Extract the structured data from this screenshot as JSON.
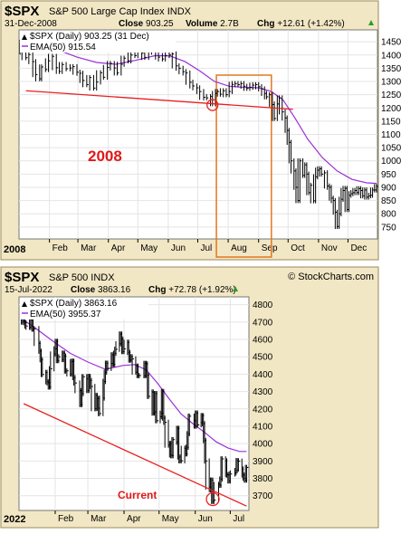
{
  "chart_data": [
    {
      "type": "line",
      "symbol": "$SPX",
      "name": "S&P 500 Large Cap Index",
      "exchange": "INDX",
      "date": "31-Dec-2008",
      "close_label": "Close",
      "close": "903.25",
      "volume_label": "Volume",
      "volume": "2.7B",
      "chg_label": "Chg",
      "chg": "+12.61 (+1.42%)",
      "legend": [
        {
          "name": "$SPX (Daily) 903.25 (31 Dec)",
          "color": "#000000"
        },
        {
          "name": "EMA(50) 915.54",
          "color": "#9b30d9"
        }
      ],
      "annotation": "2008",
      "year_label": "2008",
      "x_ticks": [
        "Feb",
        "Mar",
        "Apr",
        "May",
        "Jun",
        "Jul",
        "Aug",
        "Sep",
        "Oct",
        "Nov",
        "Dec"
      ],
      "y_ticks": [
        750,
        800,
        850,
        900,
        950,
        1000,
        1050,
        1100,
        1150,
        1200,
        1250,
        1300,
        1350,
        1400,
        1450
      ],
      "ylim": [
        705,
        1495
      ],
      "x_range_days": [
        1,
        366
      ],
      "price": [
        [
          2,
          1448
        ],
        [
          4,
          1411
        ],
        [
          8,
          1390
        ],
        [
          11,
          1402
        ],
        [
          15,
          1375
        ],
        [
          18,
          1326
        ],
        [
          22,
          1310
        ],
        [
          24,
          1355
        ],
        [
          28,
          1345
        ],
        [
          31,
          1378
        ],
        [
          35,
          1395
        ],
        [
          39,
          1352
        ],
        [
          42,
          1338
        ],
        [
          45,
          1364
        ],
        [
          49,
          1348
        ],
        [
          53,
          1351
        ],
        [
          56,
          1356
        ],
        [
          60,
          1335
        ],
        [
          63,
          1331
        ],
        [
          66,
          1304
        ],
        [
          70,
          1288
        ],
        [
          73,
          1315
        ],
        [
          77,
          1275
        ],
        [
          80,
          1298
        ],
        [
          84,
          1333
        ],
        [
          87,
          1316
        ],
        [
          91,
          1353
        ],
        [
          94,
          1368
        ],
        [
          98,
          1351
        ],
        [
          101,
          1332
        ],
        [
          105,
          1365
        ],
        [
          108,
          1388
        ],
        [
          112,
          1378
        ],
        [
          115,
          1400
        ],
        [
          119,
          1398
        ],
        [
          122,
          1412
        ],
        [
          126,
          1407
        ],
        [
          129,
          1391
        ],
        [
          133,
          1415
        ],
        [
          136,
          1423
        ],
        [
          140,
          1411
        ],
        [
          143,
          1392
        ],
        [
          147,
          1385
        ],
        [
          150,
          1398
        ],
        [
          154,
          1400
        ],
        [
          157,
          1404
        ],
        [
          161,
          1359
        ],
        [
          164,
          1350
        ],
        [
          168,
          1337
        ],
        [
          171,
          1332
        ],
        [
          175,
          1297
        ],
        [
          178,
          1283
        ],
        [
          182,
          1276
        ],
        [
          185,
          1262
        ],
        [
          189,
          1240
        ],
        [
          192,
          1238
        ],
        [
          196,
          1243
        ],
        [
          198,
          1216
        ],
        [
          201,
          1255
        ],
        [
          203,
          1262
        ],
        [
          206,
          1252
        ],
        [
          209,
          1265
        ],
        [
          212,
          1250
        ],
        [
          215,
          1262
        ],
        [
          218,
          1289
        ],
        [
          221,
          1292
        ],
        [
          224,
          1288
        ],
        [
          227,
          1292
        ],
        [
          230,
          1282
        ],
        [
          233,
          1274
        ],
        [
          236,
          1278
        ],
        [
          239,
          1286
        ],
        [
          242,
          1288
        ],
        [
          245,
          1280
        ],
        [
          248,
          1272
        ],
        [
          251,
          1255
        ],
        [
          253,
          1242
        ],
        [
          256,
          1250
        ],
        [
          259,
          1213
        ],
        [
          261,
          1160
        ],
        [
          264,
          1215
        ],
        [
          266,
          1238
        ],
        [
          269,
          1185
        ],
        [
          272,
          1162
        ],
        [
          274,
          1115
        ],
        [
          276,
          1070
        ],
        [
          278,
          1000
        ],
        [
          281,
          962
        ],
        [
          283,
          900
        ],
        [
          285,
          850
        ],
        [
          287,
          1000
        ],
        [
          290,
          945
        ],
        [
          292,
          985
        ],
        [
          294,
          950
        ],
        [
          296,
          880
        ],
        [
          298,
          908
        ],
        [
          301,
          849
        ],
        [
          303,
          940
        ],
        [
          305,
          965
        ],
        [
          307,
          970
        ],
        [
          309,
          950
        ],
        [
          312,
          955
        ],
        [
          315,
          905
        ],
        [
          317,
          900
        ],
        [
          319,
          859
        ],
        [
          321,
          850
        ],
        [
          323,
          806
        ],
        [
          325,
          752
        ],
        [
          327,
          800
        ],
        [
          329,
          855
        ],
        [
          331,
          888
        ],
        [
          333,
          896
        ],
        [
          335,
          816
        ],
        [
          337,
          870
        ],
        [
          339,
          876
        ],
        [
          341,
          880
        ],
        [
          343,
          888
        ],
        [
          345,
          880
        ],
        [
          347,
          895
        ],
        [
          349,
          888
        ],
        [
          351,
          868
        ],
        [
          353,
          890
        ],
        [
          355,
          863
        ],
        [
          357,
          868
        ],
        [
          359,
          870
        ],
        [
          361,
          890
        ],
        [
          363,
          890
        ],
        [
          365,
          903
        ]
      ],
      "ema": [
        [
          2,
          1470
        ],
        [
          20,
          1448
        ],
        [
          40,
          1420
        ],
        [
          60,
          1392
        ],
        [
          80,
          1372
        ],
        [
          100,
          1365
        ],
        [
          120,
          1380
        ],
        [
          140,
          1398
        ],
        [
          155,
          1396
        ],
        [
          170,
          1375
        ],
        [
          185,
          1340
        ],
        [
          200,
          1300
        ],
        [
          215,
          1282
        ],
        [
          230,
          1278
        ],
        [
          245,
          1276
        ],
        [
          258,
          1262
        ],
        [
          270,
          1230
        ],
        [
          282,
          1162
        ],
        [
          295,
          1082
        ],
        [
          310,
          1012
        ],
        [
          325,
          962
        ],
        [
          340,
          930
        ],
        [
          355,
          917
        ],
        [
          365,
          915
        ]
      ],
      "support_line": [
        [
          8,
          1265
        ],
        [
          280,
          1195
        ]
      ],
      "highlight_box": [
        202,
        258
      ],
      "circle_point": [
        198,
        1211
      ]
    },
    {
      "type": "line",
      "symbol": "$SPX",
      "name": "S&P 500",
      "exchange": "INDX",
      "source": "© StockCharts.com",
      "date": "15-Jul-2022",
      "close_label": "Close",
      "close": "3863.16",
      "chg_label": "Chg",
      "chg": "+72.78 (+1.92%)",
      "legend": [
        {
          "name": "$SPX (Daily) 3863.16",
          "color": "#000000"
        },
        {
          "name": "EMA(50) 3955.37",
          "color": "#9b30d9"
        }
      ],
      "annotation": "Current",
      "year_label": "2022",
      "x_ticks": [
        "Feb",
        "Mar",
        "Apr",
        "May",
        "Jun",
        "Jul"
      ],
      "y_ticks": [
        3700,
        3800,
        3900,
        4000,
        4100,
        4200,
        4300,
        4400,
        4500,
        4600,
        4700,
        4800
      ],
      "ylim": [
        3615,
        4845
      ],
      "x_range_days": [
        1,
        198
      ],
      "price": [
        [
          3,
          4797
        ],
        [
          4,
          4700
        ],
        [
          5,
          4730
        ],
        [
          6,
          4696
        ],
        [
          7,
          4677
        ],
        [
          10,
          4670
        ],
        [
          11,
          4713
        ],
        [
          12,
          4726
        ],
        [
          13,
          4659
        ],
        [
          14,
          4662
        ],
        [
          18,
          4577
        ],
        [
          19,
          4532
        ],
        [
          20,
          4483
        ],
        [
          21,
          4398
        ],
        [
          24,
          4410
        ],
        [
          25,
          4356
        ],
        [
          26,
          4350
        ],
        [
          27,
          4326
        ],
        [
          28,
          4431
        ],
        [
          31,
          4516
        ],
        [
          32,
          4546
        ],
        [
          33,
          4589
        ],
        [
          34,
          4478
        ],
        [
          35,
          4500
        ],
        [
          38,
          4484
        ],
        [
          39,
          4521
        ],
        [
          40,
          4504
        ],
        [
          41,
          4418
        ],
        [
          42,
          4419
        ],
        [
          45,
          4401
        ],
        [
          46,
          4472
        ],
        [
          47,
          4475
        ],
        [
          48,
          4380
        ],
        [
          49,
          4349
        ],
        [
          53,
          4305
        ],
        [
          54,
          4225
        ],
        [
          55,
          4288
        ],
        [
          56,
          4385
        ],
        [
          59,
          4373
        ],
        [
          60,
          4306
        ],
        [
          61,
          4387
        ],
        [
          62,
          4364
        ],
        [
          63,
          4329
        ],
        [
          66,
          4201
        ],
        [
          67,
          4278
        ],
        [
          68,
          4260
        ],
        [
          69,
          4204
        ],
        [
          70,
          4173
        ],
        [
          73,
          4262
        ],
        [
          74,
          4358
        ],
        [
          75,
          4411
        ],
        [
          76,
          4463
        ],
        [
          77,
          4433
        ],
        [
          80,
          4462
        ],
        [
          81,
          4511
        ],
        [
          82,
          4456
        ],
        [
          83,
          4520
        ],
        [
          84,
          4543
        ],
        [
          87,
          4575
        ],
        [
          88,
          4631
        ],
        [
          89,
          4602
        ],
        [
          90,
          4530
        ],
        [
          91,
          4546
        ],
        [
          94,
          4583
        ],
        [
          95,
          4525
        ],
        [
          96,
          4481
        ],
        [
          97,
          4500
        ],
        [
          98,
          4488
        ],
        [
          101,
          4412
        ],
        [
          102,
          4446
        ],
        [
          103,
          4392
        ],
        [
          104,
          4392
        ],
        [
          108,
          4391
        ],
        [
          109,
          4462
        ],
        [
          110,
          4459
        ],
        [
          111,
          4393
        ],
        [
          112,
          4272
        ],
        [
          115,
          4297
        ],
        [
          116,
          4176
        ],
        [
          117,
          4184
        ],
        [
          118,
          4288
        ],
        [
          119,
          4132
        ],
        [
          122,
          4155
        ],
        [
          123,
          4175
        ],
        [
          124,
          4300
        ],
        [
          125,
          4147
        ],
        [
          126,
          4123
        ],
        [
          129,
          3991
        ],
        [
          130,
          4001
        ],
        [
          131,
          3935
        ],
        [
          132,
          3930
        ],
        [
          133,
          4023
        ],
        [
          136,
          4008
        ],
        [
          137,
          4088
        ],
        [
          138,
          3923
        ],
        [
          139,
          3901
        ],
        [
          140,
          3901
        ],
        [
          143,
          3973
        ],
        [
          144,
          3941
        ],
        [
          145,
          3979
        ],
        [
          146,
          4057
        ],
        [
          147,
          4158
        ],
        [
          151,
          4132
        ],
        [
          152,
          4101
        ],
        [
          153,
          4176
        ],
        [
          154,
          4108
        ],
        [
          157,
          4121
        ],
        [
          158,
          4161
        ],
        [
          159,
          4115
        ],
        [
          160,
          4018
        ],
        [
          161,
          3900
        ],
        [
          164,
          3750
        ],
        [
          165,
          3735
        ],
        [
          166,
          3790
        ],
        [
          167,
          3667
        ],
        [
          168,
          3675
        ],
        [
          172,
          3765
        ],
        [
          173,
          3760
        ],
        [
          174,
          3796
        ],
        [
          175,
          3912
        ],
        [
          178,
          3901
        ],
        [
          179,
          3821
        ],
        [
          180,
          3819
        ],
        [
          181,
          3785
        ],
        [
          182,
          3825
        ],
        [
          186,
          3831
        ],
        [
          187,
          3845
        ],
        [
          188,
          3902
        ],
        [
          189,
          3899
        ],
        [
          192,
          3854
        ],
        [
          193,
          3819
        ],
        [
          194,
          3801
        ],
        [
          195,
          3790
        ],
        [
          196,
          3863
        ]
      ],
      "ema": [
        [
          3,
          4720
        ],
        [
          15,
          4665
        ],
        [
          30,
          4590
        ],
        [
          45,
          4520
        ],
        [
          60,
          4470
        ],
        [
          75,
          4428
        ],
        [
          90,
          4450
        ],
        [
          100,
          4455
        ],
        [
          110,
          4425
        ],
        [
          120,
          4345
        ],
        [
          130,
          4255
        ],
        [
          140,
          4170
        ],
        [
          150,
          4115
        ],
        [
          160,
          4065
        ],
        [
          170,
          4010
        ],
        [
          180,
          3975
        ],
        [
          190,
          3955
        ],
        [
          196,
          3955
        ]
      ],
      "support_line": [
        [
          5,
          4230
        ],
        [
          196,
          3640
        ]
      ],
      "circle_point": [
        167,
        3680
      ]
    }
  ]
}
